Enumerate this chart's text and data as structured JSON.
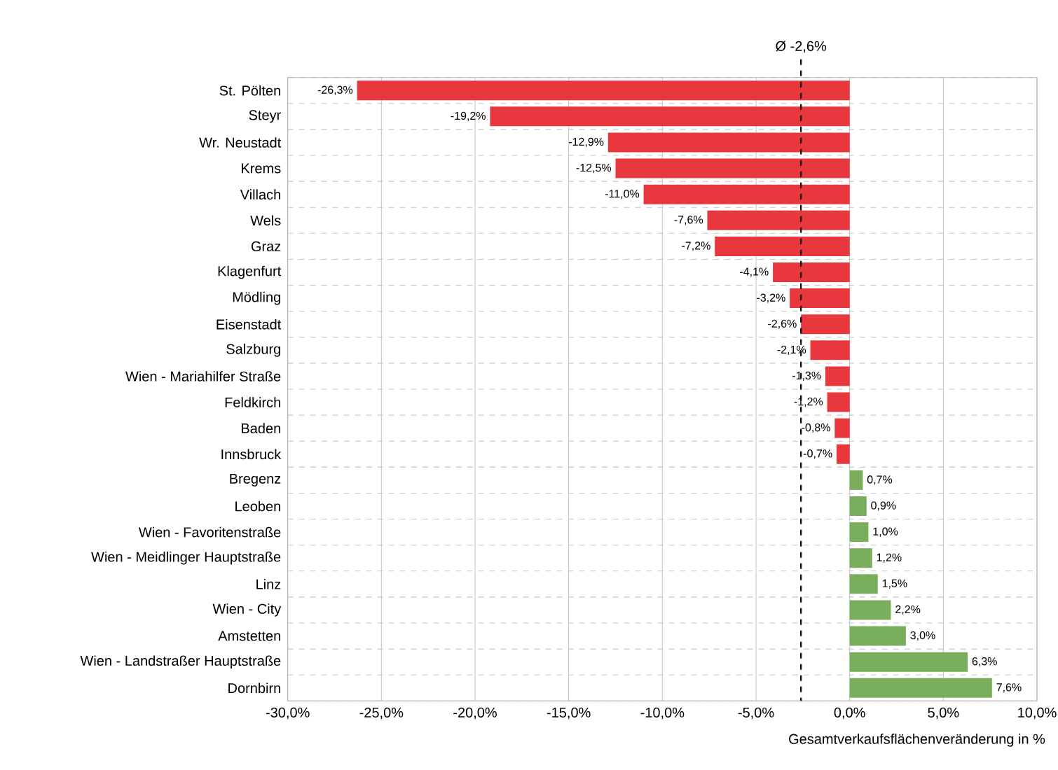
{
  "chart_data": {
    "type": "bar",
    "orientation": "horizontal",
    "categories": [
      "St. Pölten",
      "Steyr",
      "Wr. Neustadt",
      "Krems",
      "Villach",
      "Wels",
      "Graz",
      "Klagenfurt",
      "Mödling",
      "Eisenstadt",
      "Salzburg",
      "Wien - Mariahilfer Straße",
      "Feldkirch",
      "Baden",
      "Innsbruck",
      "Bregenz",
      "Leoben",
      "Wien - Favoritenstraße",
      "Wien - Meidlinger Hauptstraße",
      "Linz",
      "Wien - City",
      "Amstetten",
      "Wien - Landstraßer Hauptstraße",
      "Dornbirn"
    ],
    "values": [
      -26.3,
      -19.2,
      -12.9,
      -12.5,
      -11.0,
      -7.6,
      -7.2,
      -4.1,
      -3.2,
      -2.6,
      -2.1,
      -1.3,
      -1.2,
      -0.8,
      -0.7,
      0.7,
      0.9,
      1.0,
      1.2,
      1.5,
      2.2,
      3.0,
      6.3,
      7.6
    ],
    "value_labels": [
      "-26,3%",
      "-19,2%",
      "-12,9%",
      "-12,5%",
      "-11,0%",
      "-7,6%",
      "-7,2%",
      "-4,1%",
      "-3,2%",
      "-2,6%",
      "-2,1%",
      "-1,3%",
      "-1,2%",
      "-0,8%",
      "-0,7%",
      "0,7%",
      "0,9%",
      "1,0%",
      "1,2%",
      "1,5%",
      "2,2%",
      "3,0%",
      "6,3%",
      "7,6%"
    ],
    "colors": [
      "#e8383d",
      "#e8383d",
      "#e8383d",
      "#e8383d",
      "#e8383d",
      "#e8383d",
      "#e8383d",
      "#e8383d",
      "#e8383d",
      "#e8383d",
      "#e8383d",
      "#e8383d",
      "#e8383d",
      "#e8383d",
      "#e8383d",
      "#78ae5c",
      "#78ae5c",
      "#78ae5c",
      "#78ae5c",
      "#78ae5c",
      "#78ae5c",
      "#78ae5c",
      "#78ae5c",
      "#78ae5c"
    ],
    "xlim": [
      -30,
      10
    ],
    "xticks": [
      {
        "value": -30,
        "label": "-30,0%"
      },
      {
        "value": -25,
        "label": "-25,0%"
      },
      {
        "value": -20,
        "label": "-20,0%"
      },
      {
        "value": -15,
        "label": "-15,0%"
      },
      {
        "value": -10,
        "label": "-10,0%"
      },
      {
        "value": -5,
        "label": "-5,0%"
      },
      {
        "value": 0,
        "label": "0,0%"
      },
      {
        "value": 5,
        "label": "5,0%"
      },
      {
        "value": 10,
        "label": "10,0%"
      }
    ],
    "xlabel": "Gesamtverkaufsflächenveränderung in %",
    "ref_lines": [
      {
        "axis": "x",
        "value": -2.6,
        "label": "Ø -2,6%",
        "color": "#000000",
        "line_style": "dashed"
      }
    ],
    "grid": true
  }
}
